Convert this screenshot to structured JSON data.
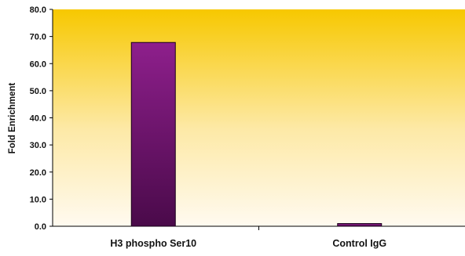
{
  "chart_data": {
    "type": "bar",
    "title": "",
    "xlabel": "",
    "ylabel": "Fold Enrichment",
    "categories": [
      "H3 phospho Ser10",
      "Control IgG"
    ],
    "values": [
      67.8,
      1.0
    ],
    "ylim": [
      0,
      80
    ],
    "yticks": [
      "0.0",
      "10.0",
      "20.0",
      "30.0",
      "40.0",
      "50.0",
      "60.0",
      "70.0",
      "80.0"
    ],
    "grid": false,
    "legend": "none",
    "colors": {
      "bar_top": "#8e1f8c",
      "bar_bottom": "#4a0a4a",
      "background_top": "#f7c800",
      "background_bottom": "#fffaf0"
    }
  }
}
